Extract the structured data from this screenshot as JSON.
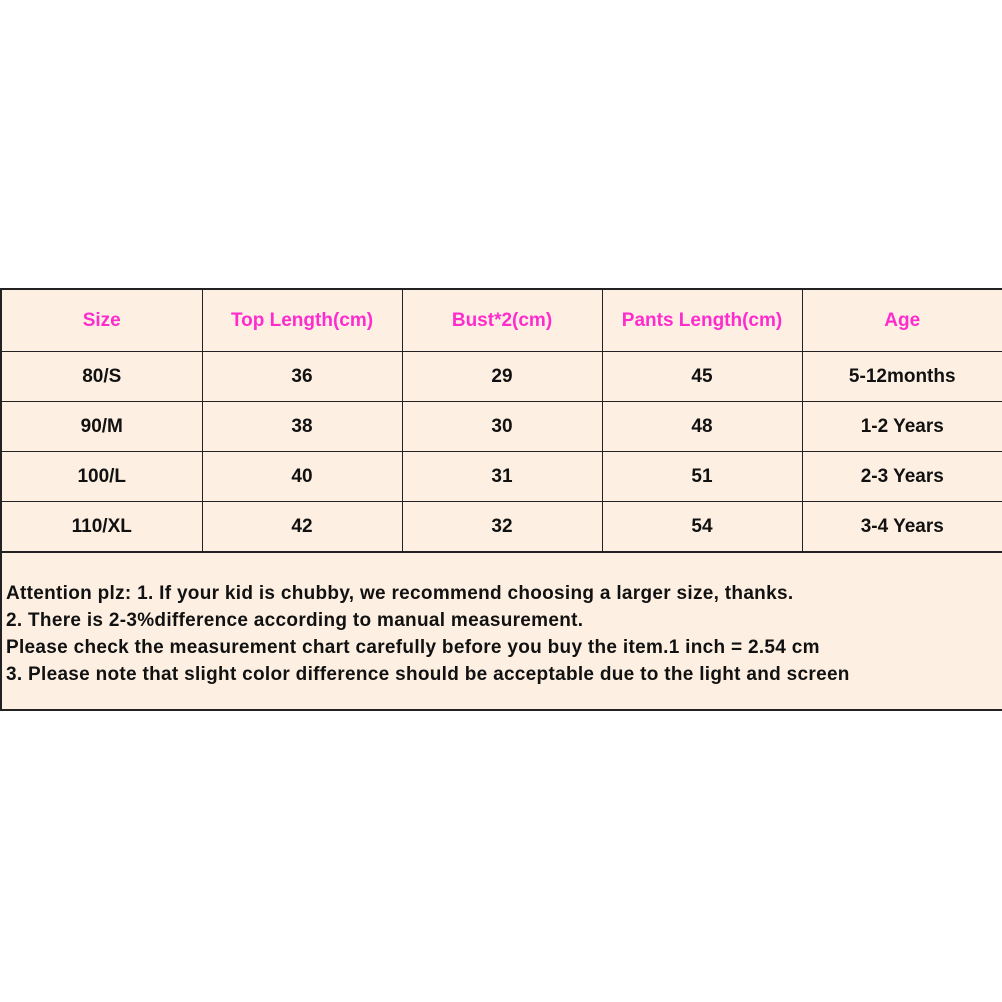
{
  "table": {
    "headers": [
      "Size",
      "Top Length(cm)",
      "Bust*2(cm)",
      "Pants Length(cm)",
      "Age"
    ],
    "rows": [
      [
        "80/S",
        "36",
        "29",
        "45",
        "5-12months"
      ],
      [
        "90/M",
        "38",
        "30",
        "48",
        "1-2 Years"
      ],
      [
        "100/L",
        "40",
        "31",
        "51",
        "2-3 Years"
      ],
      [
        "110/XL",
        "42",
        "32",
        "54",
        "3-4 Years"
      ]
    ]
  },
  "notes": [
    "Attention plz: 1. If your kid is chubby, we recommend choosing a larger size, thanks.",
    "2. There is 2-3%difference according to manual measurement.",
    "Please check the measurement chart carefully before you buy the item.1 inch = 2.54 cm",
    "3. Please note that slight color difference should be acceptable due to the light and screen"
  ],
  "colors": {
    "header_text": "#ff2ccd",
    "background": "#fdf0e3",
    "border": "#222222"
  }
}
